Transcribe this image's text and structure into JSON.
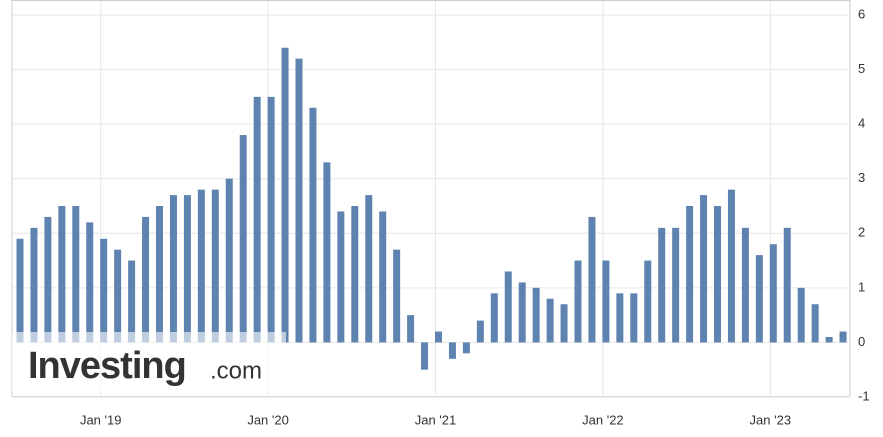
{
  "chart_data": {
    "type": "bar",
    "categories": [
      null,
      null,
      null,
      null,
      null,
      null,
      "Jan '19",
      null,
      null,
      null,
      null,
      null,
      null,
      null,
      null,
      null,
      null,
      null,
      "Jan '20",
      null,
      null,
      null,
      null,
      null,
      null,
      null,
      null,
      null,
      null,
      null,
      "Jan '21",
      null,
      null,
      null,
      null,
      null,
      null,
      null,
      null,
      null,
      null,
      null,
      "Jan '22",
      null,
      null,
      null,
      null,
      null,
      null,
      null,
      null,
      null,
      null,
      null,
      "Jan '23",
      null,
      null,
      null,
      null,
      null
    ],
    "values": [
      1.9,
      2.1,
      2.3,
      2.5,
      2.5,
      2.2,
      1.9,
      1.7,
      1.5,
      2.3,
      2.5,
      2.7,
      2.7,
      2.8,
      2.8,
      3.0,
      3.8,
      4.5,
      4.5,
      5.4,
      5.2,
      4.3,
      3.3,
      2.4,
      2.5,
      2.7,
      2.4,
      1.7,
      0.5,
      -0.5,
      0.2,
      -0.3,
      -0.2,
      0.4,
      0.9,
      1.3,
      1.1,
      1.0,
      0.8,
      0.7,
      1.5,
      2.3,
      1.5,
      0.9,
      0.9,
      1.5,
      2.1,
      2.1,
      2.5,
      2.7,
      2.5,
      2.8,
      2.1,
      1.6,
      1.8,
      2.1,
      1.0,
      0.7,
      0.1,
      0.2
    ],
    "color": "#5f83b1",
    "ylim": [
      -1,
      6
    ],
    "yticks": [
      -1,
      0,
      1,
      2,
      3,
      4,
      5,
      6
    ],
    "grid": true,
    "watermark": {
      "brand": "Investing",
      "suffix": ".com"
    }
  }
}
